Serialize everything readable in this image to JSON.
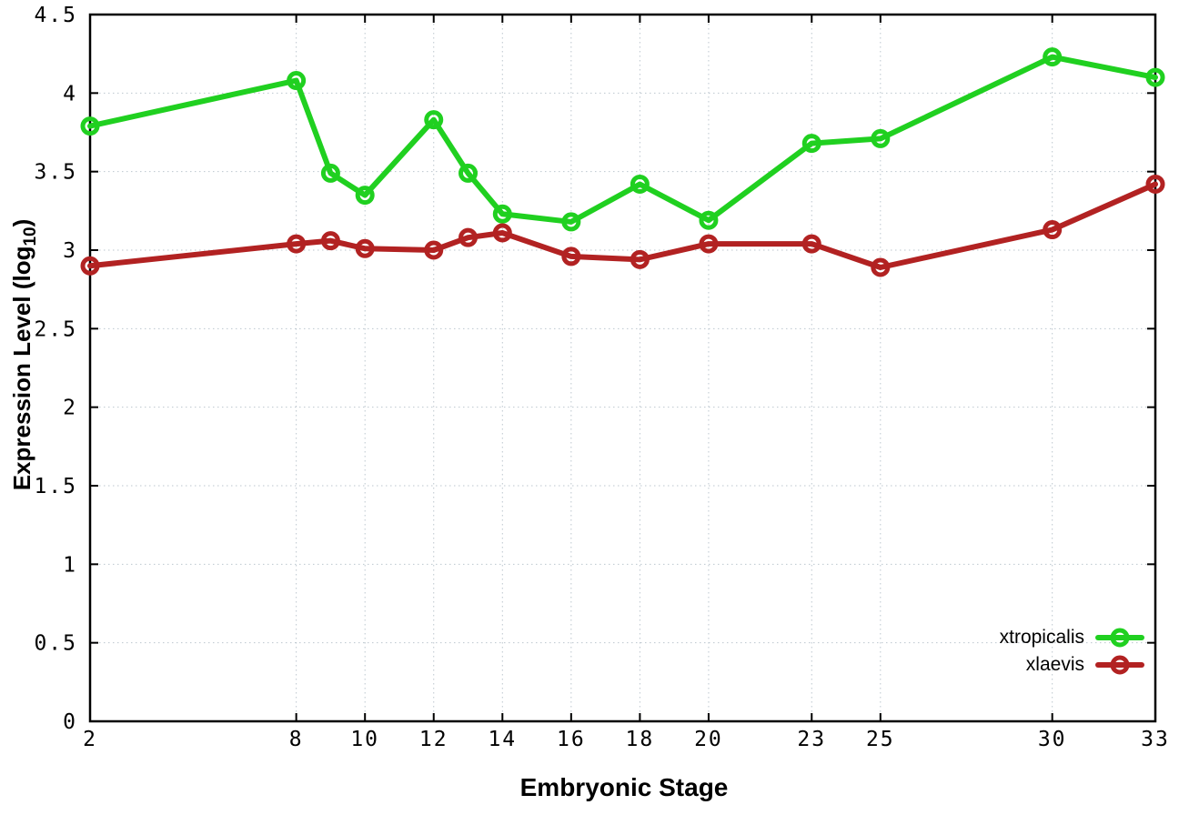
{
  "chart_data": {
    "type": "line",
    "title": "",
    "xlabel": "Embryonic Stage",
    "ylabel": {
      "text": "Expression Level (log",
      "sub": "10",
      "suffix": ")"
    },
    "xlim": [
      2,
      33
    ],
    "ylim": [
      0,
      4.5
    ],
    "grid": true,
    "legend_position": "bottom-right-inside",
    "x": [
      2,
      8,
      9,
      10,
      12,
      13,
      14,
      16,
      18,
      20,
      23,
      25,
      30,
      33
    ],
    "x_ticks": [
      {
        "v": 2,
        "label": "2"
      },
      {
        "v": 8,
        "label": "8"
      },
      {
        "v": 10,
        "label": "10"
      },
      {
        "v": 12,
        "label": "12"
      },
      {
        "v": 14,
        "label": "14"
      },
      {
        "v": 16,
        "label": "16"
      },
      {
        "v": 18,
        "label": "18"
      },
      {
        "v": 20,
        "label": "20"
      },
      {
        "v": 23,
        "label": "23"
      },
      {
        "v": 25,
        "label": "25"
      },
      {
        "v": 30,
        "label": "30"
      },
      {
        "v": 33,
        "label": "33"
      }
    ],
    "y_ticks": [
      {
        "v": 0,
        "label": "0"
      },
      {
        "v": 0.5,
        "label": "0.5"
      },
      {
        "v": 1,
        "label": "1"
      },
      {
        "v": 1.5,
        "label": "1.5"
      },
      {
        "v": 2,
        "label": "2"
      },
      {
        "v": 2.5,
        "label": "2.5"
      },
      {
        "v": 3,
        "label": "3"
      },
      {
        "v": 3.5,
        "label": "3.5"
      },
      {
        "v": 4,
        "label": "4"
      },
      {
        "v": 4.5,
        "label": "4.5"
      }
    ],
    "series": [
      {
        "name": "xtropicalis",
        "color": "#20d020",
        "marker": "open-circle",
        "values": [
          3.79,
          4.08,
          3.49,
          3.35,
          3.83,
          3.49,
          3.23,
          3.18,
          3.42,
          3.19,
          3.68,
          3.71,
          4.23,
          4.1
        ]
      },
      {
        "name": "xlaevis",
        "color": "#b22222",
        "marker": "open-circle",
        "values": [
          2.9,
          3.04,
          3.06,
          3.01,
          3.0,
          3.08,
          3.11,
          2.96,
          2.94,
          3.04,
          3.04,
          2.89,
          3.13,
          3.42
        ]
      }
    ],
    "colors": {
      "background": "#ffffff",
      "axis": "#000000",
      "grid": "#bcc6ce"
    }
  }
}
